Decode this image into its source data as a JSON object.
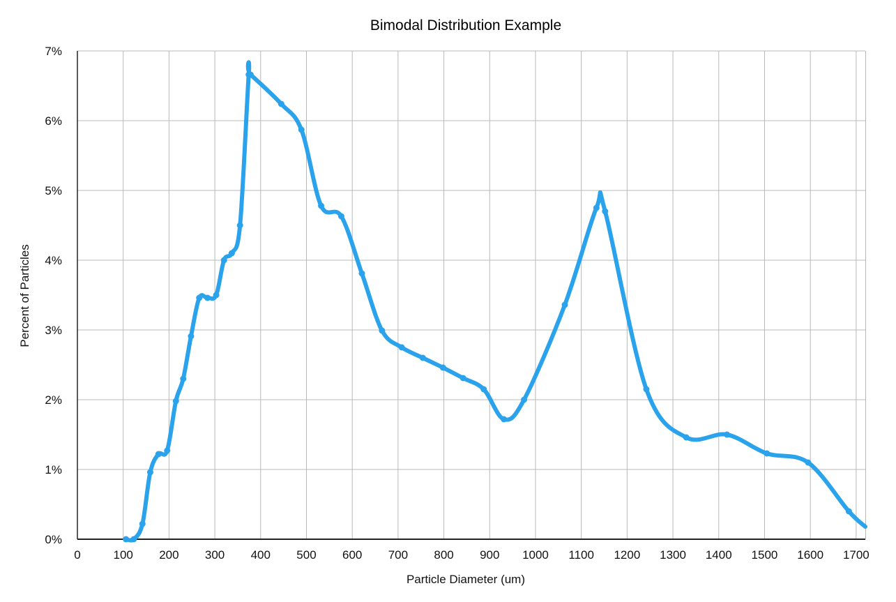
{
  "chart_data": {
    "type": "line",
    "title": "Bimodal Distribution Example",
    "xlabel": "Particle Diameter (um)",
    "ylabel": "Percent of Particles",
    "xlim": [
      0,
      1720
    ],
    "ylim": [
      0,
      7
    ],
    "grid": true,
    "legend": "none",
    "line_color": "#2aa3ec",
    "grid_color": "#b8b8b8",
    "x_ticks": [
      "0",
      "100",
      "200",
      "300",
      "400",
      "500",
      "600",
      "700",
      "800",
      "900",
      "1000",
      "1100",
      "1200",
      "1300",
      "1400",
      "1500",
      "1600",
      "1700"
    ],
    "y_ticks": [
      "0%",
      "1%",
      "2%",
      "3%",
      "4%",
      "5%",
      "6%",
      "7%"
    ],
    "x_tick_values": [
      0,
      100,
      200,
      300,
      400,
      500,
      600,
      700,
      800,
      900,
      1000,
      1100,
      1200,
      1300,
      1400,
      1500,
      1600,
      1700
    ],
    "y_tick_values": [
      0,
      1,
      2,
      3,
      4,
      5,
      6,
      7
    ],
    "series": [
      {
        "x": [
          106,
          123,
          142,
          159,
          177,
          196,
          215,
          231,
          248,
          266,
          284,
          303,
          320,
          337,
          355,
          374,
          378,
          445,
          489,
          532,
          576,
          621,
          665,
          708,
          754,
          798,
          842,
          887,
          931,
          975,
          1064,
          1133,
          1152,
          1242,
          1329,
          1418,
          1505,
          1595,
          1684,
          1720
        ],
        "y": [
          0,
          0,
          0.22,
          0.96,
          1.22,
          1.27,
          1.98,
          2.3,
          2.91,
          3.46,
          3.46,
          3.5,
          4.0,
          4.1,
          4.5,
          6.66,
          6.66,
          6.24,
          5.87,
          4.78,
          4.63,
          3.81,
          2.99,
          2.75,
          2.6,
          2.46,
          2.31,
          2.15,
          1.72,
          2.0,
          3.36,
          4.75,
          4.7,
          2.15,
          1.46,
          1.5,
          1.23,
          1.1,
          0.4,
          0.18
        ]
      }
    ]
  }
}
